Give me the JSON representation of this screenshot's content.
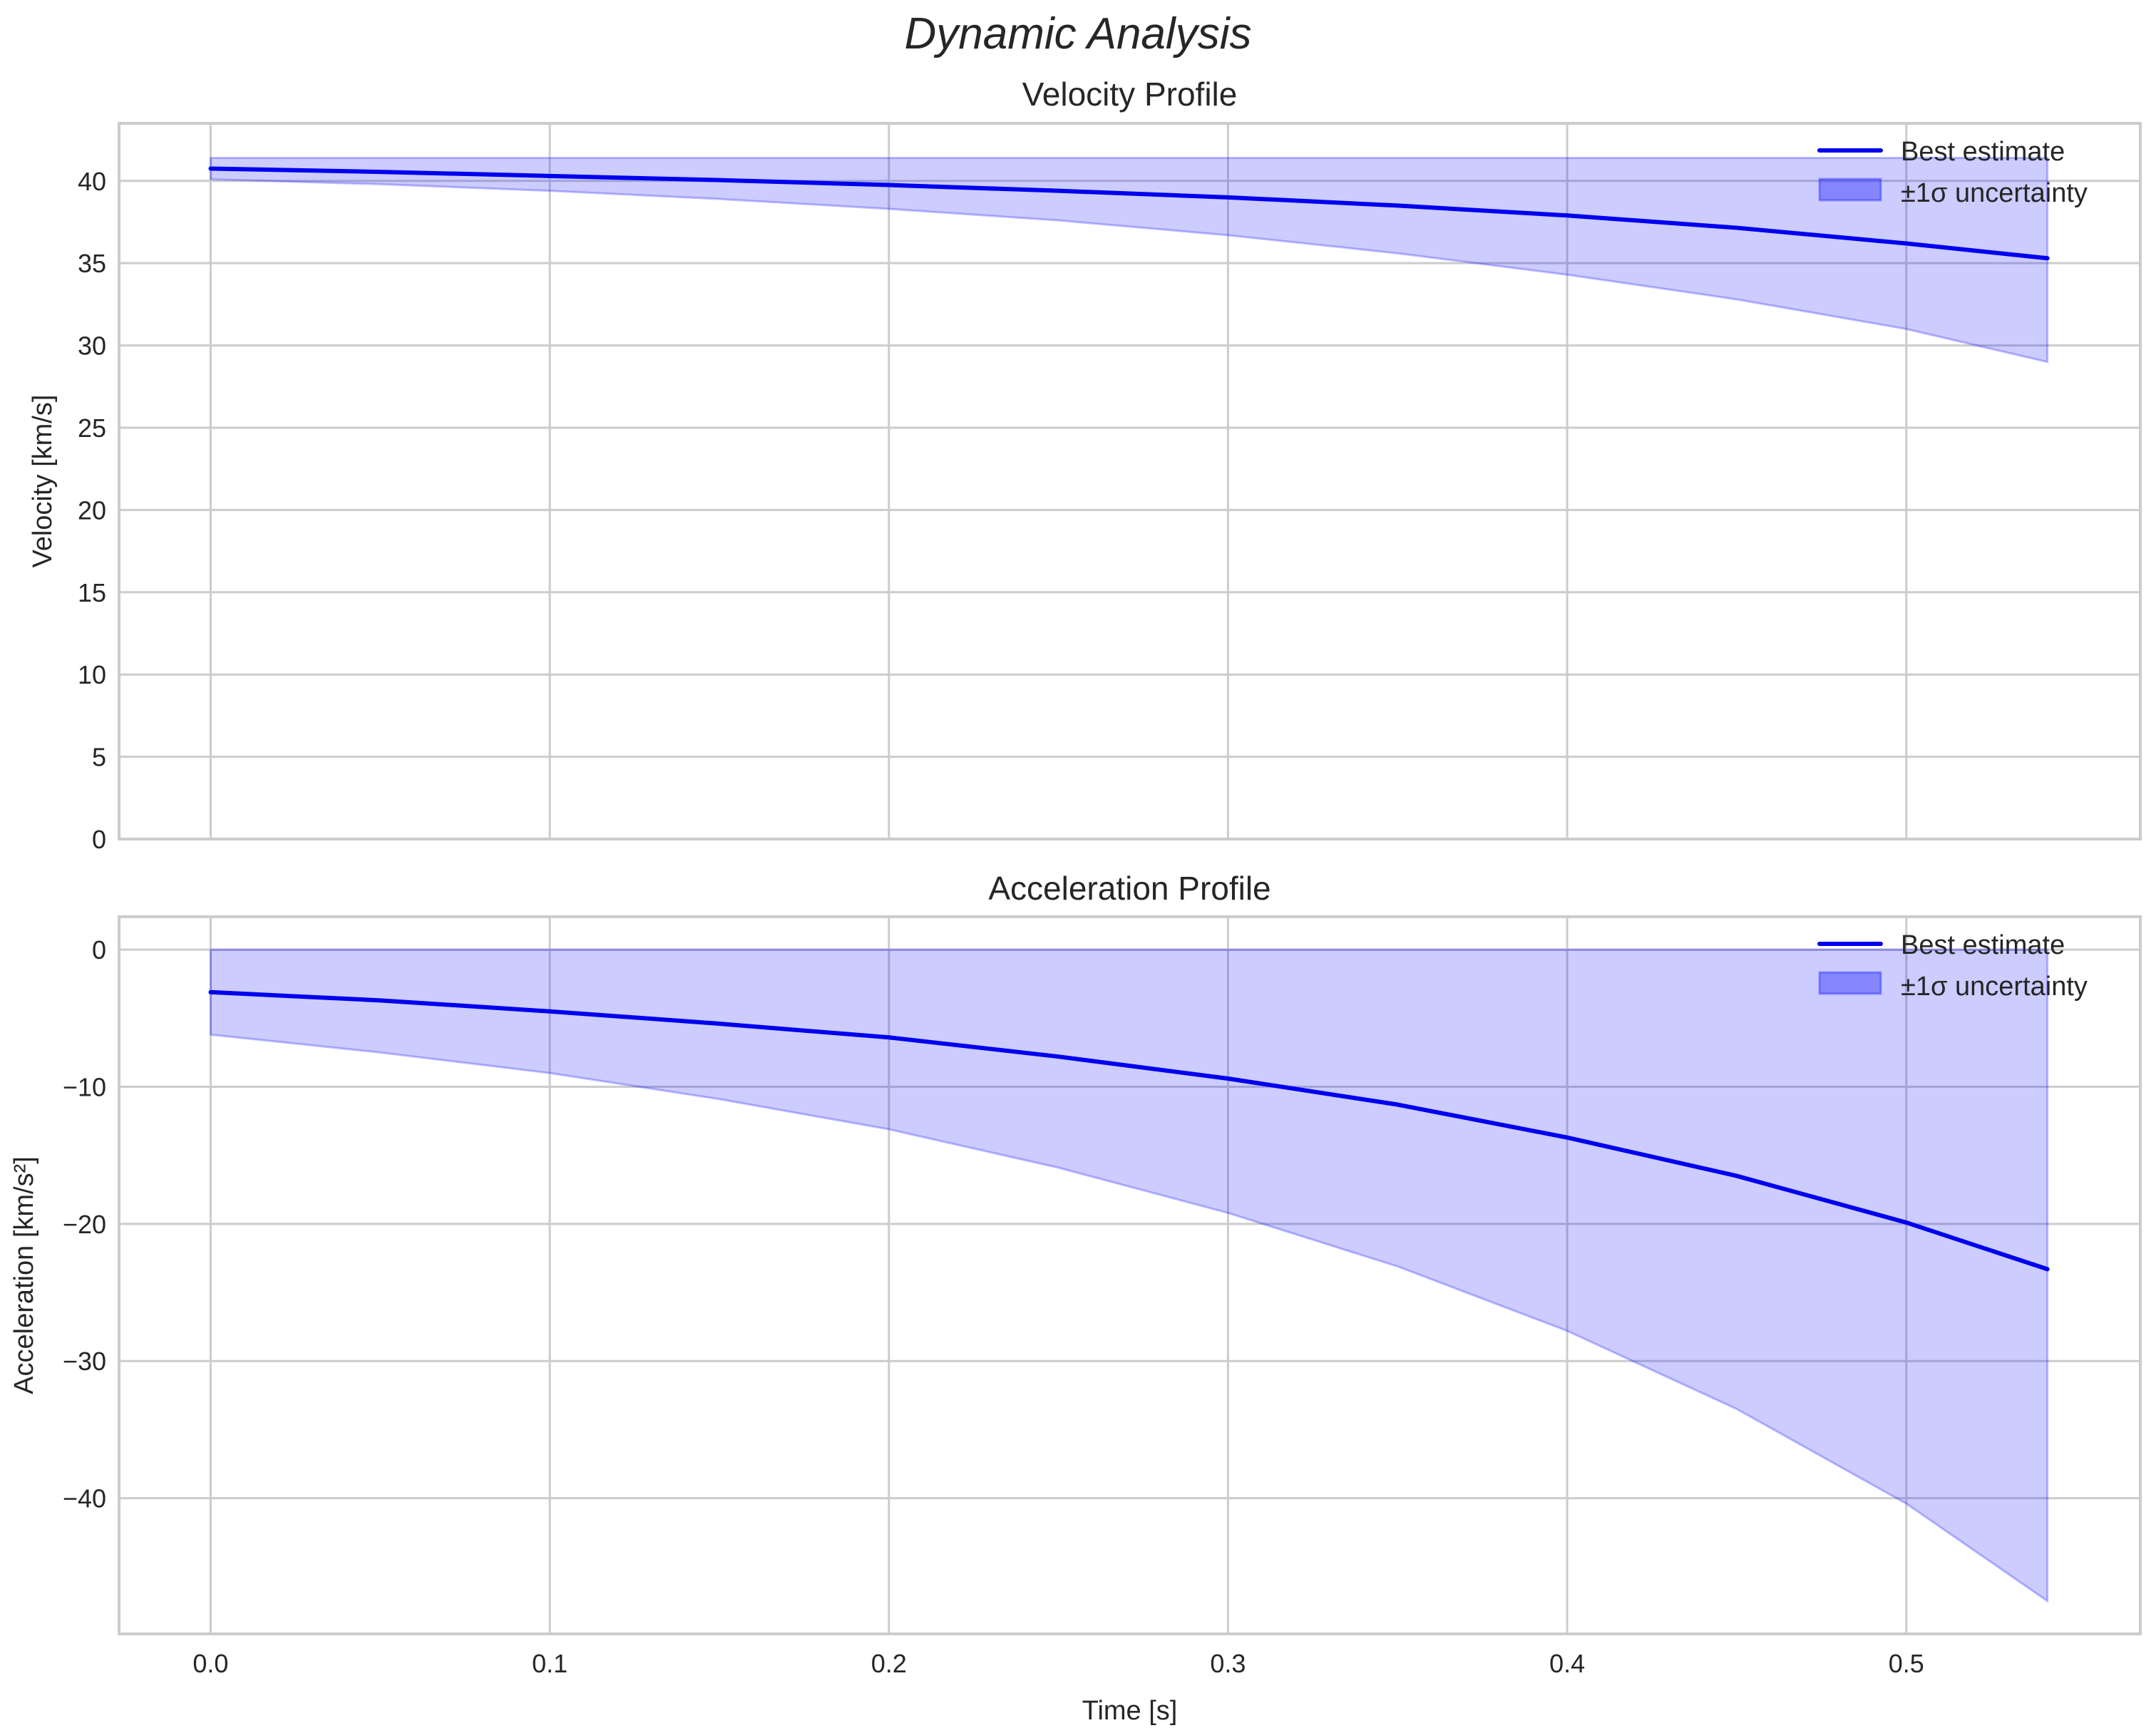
{
  "figure": {
    "suptitle": "Dynamic Analysis",
    "line_color": "#0000ee",
    "band_color": "#0000ff",
    "band_alpha": 0.2
  },
  "chart_data": [
    {
      "type": "line",
      "title": "Velocity Profile",
      "xlabel": "",
      "ylabel": "Velocity [km/s]",
      "xlim": [
        -0.027,
        0.569
      ],
      "ylim": [
        0,
        43.5
      ],
      "xticks": [
        "0.0",
        "0.1",
        "0.2",
        "0.3",
        "0.4",
        "0.5"
      ],
      "xtick_labels_visible": false,
      "yticks": [
        "0",
        "5",
        "10",
        "15",
        "20",
        "25",
        "30",
        "35",
        "40"
      ],
      "grid": true,
      "legend": {
        "position": "upper right",
        "entries": [
          "Best estimate",
          "±1σ uncertainty"
        ]
      },
      "x": [
        0.0,
        0.05,
        0.1,
        0.15,
        0.2,
        0.25,
        0.3,
        0.35,
        0.4,
        0.45,
        0.5,
        0.5416
      ],
      "series": [
        {
          "name": "Best estimate",
          "kind": "line",
          "values": [
            40.75,
            40.55,
            40.3,
            40.05,
            39.75,
            39.4,
            39.0,
            38.5,
            37.9,
            37.15,
            36.2,
            35.3
          ]
        },
        {
          "name": "±1σ uncertainty",
          "kind": "band",
          "upper": [
            41.4,
            41.4,
            41.4,
            41.4,
            41.4,
            41.4,
            41.4,
            41.4,
            41.4,
            41.4,
            41.4,
            41.4
          ],
          "lower": [
            40.1,
            39.8,
            39.4,
            38.9,
            38.3,
            37.6,
            36.7,
            35.6,
            34.3,
            32.8,
            31.0,
            29.0
          ]
        }
      ]
    },
    {
      "type": "line",
      "title": "Acceleration Profile",
      "xlabel": "Time [s]",
      "ylabel": "Acceleration [km/s²]",
      "xlim": [
        -0.027,
        0.569
      ],
      "ylim": [
        -49.9,
        2.4
      ],
      "xticks": [
        "0.0",
        "0.1",
        "0.2",
        "0.3",
        "0.4",
        "0.5"
      ],
      "yticks": [
        "−40",
        "−30",
        "−20",
        "−10",
        "0"
      ],
      "grid": true,
      "legend": {
        "position": "upper right",
        "entries": [
          "Best estimate",
          "±1σ uncertainty"
        ]
      },
      "x": [
        0.0,
        0.05,
        0.1,
        0.15,
        0.2,
        0.25,
        0.3,
        0.35,
        0.4,
        0.45,
        0.5,
        0.5416
      ],
      "series": [
        {
          "name": "Best estimate",
          "kind": "line",
          "values": [
            -3.1,
            -3.7,
            -4.5,
            -5.4,
            -6.4,
            -7.8,
            -9.4,
            -11.3,
            -13.7,
            -16.5,
            -19.9,
            -23.3
          ]
        },
        {
          "name": "±1σ uncertainty",
          "kind": "band",
          "upper": [
            0,
            0,
            0,
            0,
            0,
            0,
            0,
            0,
            0,
            0,
            0,
            0
          ],
          "lower": [
            -6.2,
            -7.5,
            -9.0,
            -10.9,
            -13.1,
            -15.9,
            -19.2,
            -23.1,
            -27.8,
            -33.5,
            -40.4,
            -47.5
          ]
        }
      ]
    }
  ]
}
